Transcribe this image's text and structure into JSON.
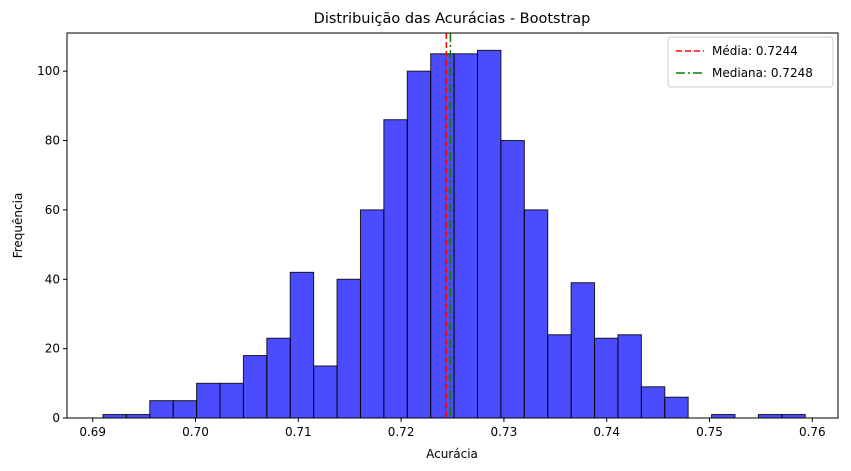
{
  "chart_data": {
    "type": "bar",
    "subtype": "histogram",
    "title": "Distribuição das Acurácias - Bootstrap",
    "xlabel": "Acurácia",
    "ylabel": "Frequência",
    "xlim": [
      0.6875,
      0.7625
    ],
    "ylim": [
      0,
      111
    ],
    "xticks": [
      0.69,
      0.7,
      0.71,
      0.72,
      0.73,
      0.74,
      0.75,
      0.76
    ],
    "xtick_labels": [
      "0.69",
      "0.70",
      "0.71",
      "0.72",
      "0.73",
      "0.74",
      "0.75",
      "0.76"
    ],
    "yticks": [
      0,
      20,
      40,
      60,
      80,
      100
    ],
    "ytick_labels": [
      "0",
      "20",
      "40",
      "60",
      "80",
      "100"
    ],
    "bin_start": 0.691,
    "bin_width": 0.002277,
    "counts": [
      1,
      1,
      5,
      5,
      10,
      10,
      18,
      23,
      42,
      15,
      40,
      60,
      86,
      100,
      105,
      105,
      106,
      80,
      60,
      24,
      39,
      23,
      24,
      9,
      6,
      0,
      1,
      0,
      1,
      1
    ],
    "bar_color": "#0000ff",
    "bar_opacity": 0.7,
    "edge_color": "#000000",
    "grid": false,
    "legend_position": "upper right",
    "reference_lines": [
      {
        "label": "Média: 0.7244",
        "value": 0.7244,
        "color": "#ff0000",
        "style": "dashed"
      },
      {
        "label": "Mediana: 0.7248",
        "value": 0.7248,
        "color": "#008000",
        "style": "dashdot"
      }
    ]
  }
}
